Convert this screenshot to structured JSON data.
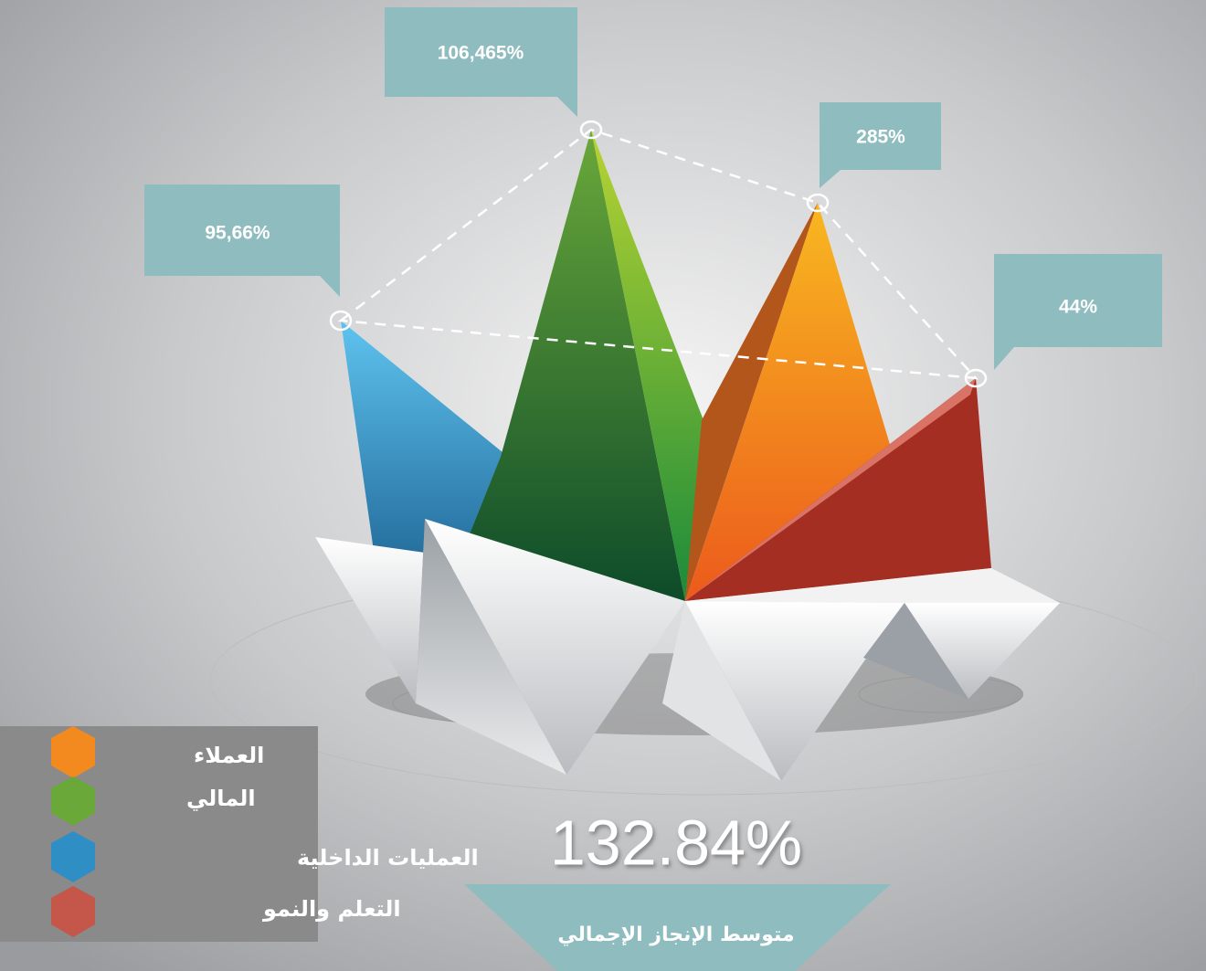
{
  "callouts": [
    {
      "label": "95,66%"
    },
    {
      "label": "106,465%"
    },
    {
      "label": "285%"
    },
    {
      "label": "44%"
    }
  ],
  "legend": [
    {
      "label": "العملاء"
    },
    {
      "label": "المالي"
    },
    {
      "label": "العمليات الداخلية"
    },
    {
      "label": "التعلم والنمو"
    }
  ],
  "summary": {
    "value": "132.84%",
    "label": "متوسط الإنجاز الإجمالي"
  }
}
